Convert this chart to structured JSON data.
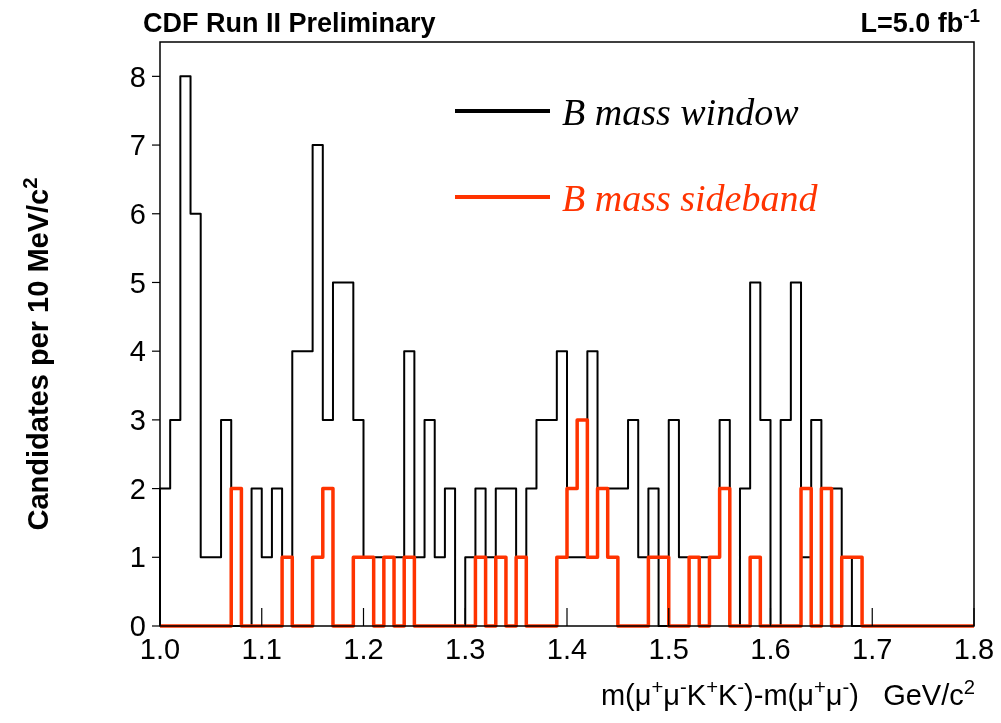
{
  "chart_data": {
    "type": "histogram",
    "title": "CDF Run II Preliminary",
    "annotations": [
      "L=5.0 fb$^{-1}$"
    ],
    "xlabel": "m(μ$^{+}$μ$^{-}$K$^{+}$K$^{-}$)-m(μ$^{+}$μ$^{-}$)   GeV/c$^{2}$",
    "ylabel": "Candidates per 10 MeV/c$^{2}$",
    "bins": [
      1.0,
      1.01,
      1.02,
      1.03,
      1.04,
      1.05,
      1.06,
      1.07,
      1.08,
      1.09,
      1.1,
      1.11,
      1.12,
      1.13,
      1.14,
      1.15,
      1.16,
      1.17,
      1.18,
      1.19,
      1.2,
      1.21,
      1.22,
      1.23,
      1.24,
      1.25,
      1.26,
      1.27,
      1.28,
      1.29,
      1.3,
      1.31,
      1.32,
      1.33,
      1.34,
      1.35,
      1.36,
      1.37,
      1.38,
      1.39,
      1.4,
      1.41,
      1.42,
      1.43,
      1.44,
      1.45,
      1.46,
      1.47,
      1.48,
      1.49,
      1.5,
      1.51,
      1.52,
      1.53,
      1.54,
      1.55,
      1.56,
      1.57,
      1.58,
      1.59,
      1.6,
      1.61,
      1.62,
      1.63,
      1.64,
      1.65,
      1.66,
      1.67,
      1.68,
      1.69,
      1.7,
      1.71,
      1.72,
      1.73,
      1.74,
      1.75,
      1.76,
      1.77,
      1.78,
      1.79,
      1.8
    ],
    "series": [
      {
        "name": "B mass window",
        "color": "#000000",
        "values": [
          2,
          3,
          8,
          6,
          1,
          1,
          3,
          0,
          0,
          2,
          1,
          2,
          1,
          4,
          4,
          7,
          3,
          5,
          5,
          3,
          1,
          1,
          1,
          1,
          4,
          1,
          3,
          1,
          2,
          0,
          1,
          2,
          1,
          2,
          2,
          1,
          2,
          3,
          3,
          4,
          1,
          1,
          4,
          2,
          2,
          2,
          3,
          1,
          2,
          0,
          3,
          1,
          1,
          1,
          1,
          3,
          0,
          2,
          5,
          3,
          0,
          3,
          5,
          1,
          3,
          2,
          2,
          1,
          0,
          0,
          0,
          0,
          0,
          0,
          0,
          0,
          0,
          0,
          0,
          0
        ]
      },
      {
        "name": "B mass sideband",
        "color": "#ff3300",
        "values": [
          0,
          0,
          0,
          0,
          0,
          0,
          0,
          2,
          0,
          0,
          0,
          0,
          1,
          0,
          0,
          1,
          2,
          0,
          0,
          1,
          1,
          0,
          1,
          0,
          1,
          0,
          0,
          0,
          0,
          0,
          0,
          1,
          0,
          1,
          0,
          1,
          0,
          0,
          0,
          1,
          2,
          3,
          1,
          2,
          1,
          0,
          0,
          0,
          1,
          1,
          0,
          0,
          1,
          0,
          1,
          2,
          0,
          0,
          1,
          0,
          0,
          0,
          0,
          2,
          0,
          2,
          0,
          1,
          1,
          0,
          0,
          0,
          0,
          0,
          0,
          0,
          0,
          0,
          0,
          0
        ]
      }
    ],
    "xlim": [
      1.0,
      1.8
    ],
    "ylim": [
      0,
      8.5
    ],
    "xticks": [
      {
        "value": 1.0,
        "label": "1.0"
      },
      {
        "value": 1.1,
        "label": "1.1"
      },
      {
        "value": 1.2,
        "label": "1.2"
      },
      {
        "value": 1.3,
        "label": "1.3"
      },
      {
        "value": 1.4,
        "label": "1.4"
      },
      {
        "value": 1.5,
        "label": "1.5"
      },
      {
        "value": 1.6,
        "label": "1.6"
      },
      {
        "value": 1.7,
        "label": "1.7"
      },
      {
        "value": 1.8,
        "label": "1.8"
      }
    ],
    "yticks": [
      0,
      1,
      2,
      3,
      4,
      5,
      6,
      7,
      8
    ],
    "legend": "top right",
    "grid": false
  }
}
